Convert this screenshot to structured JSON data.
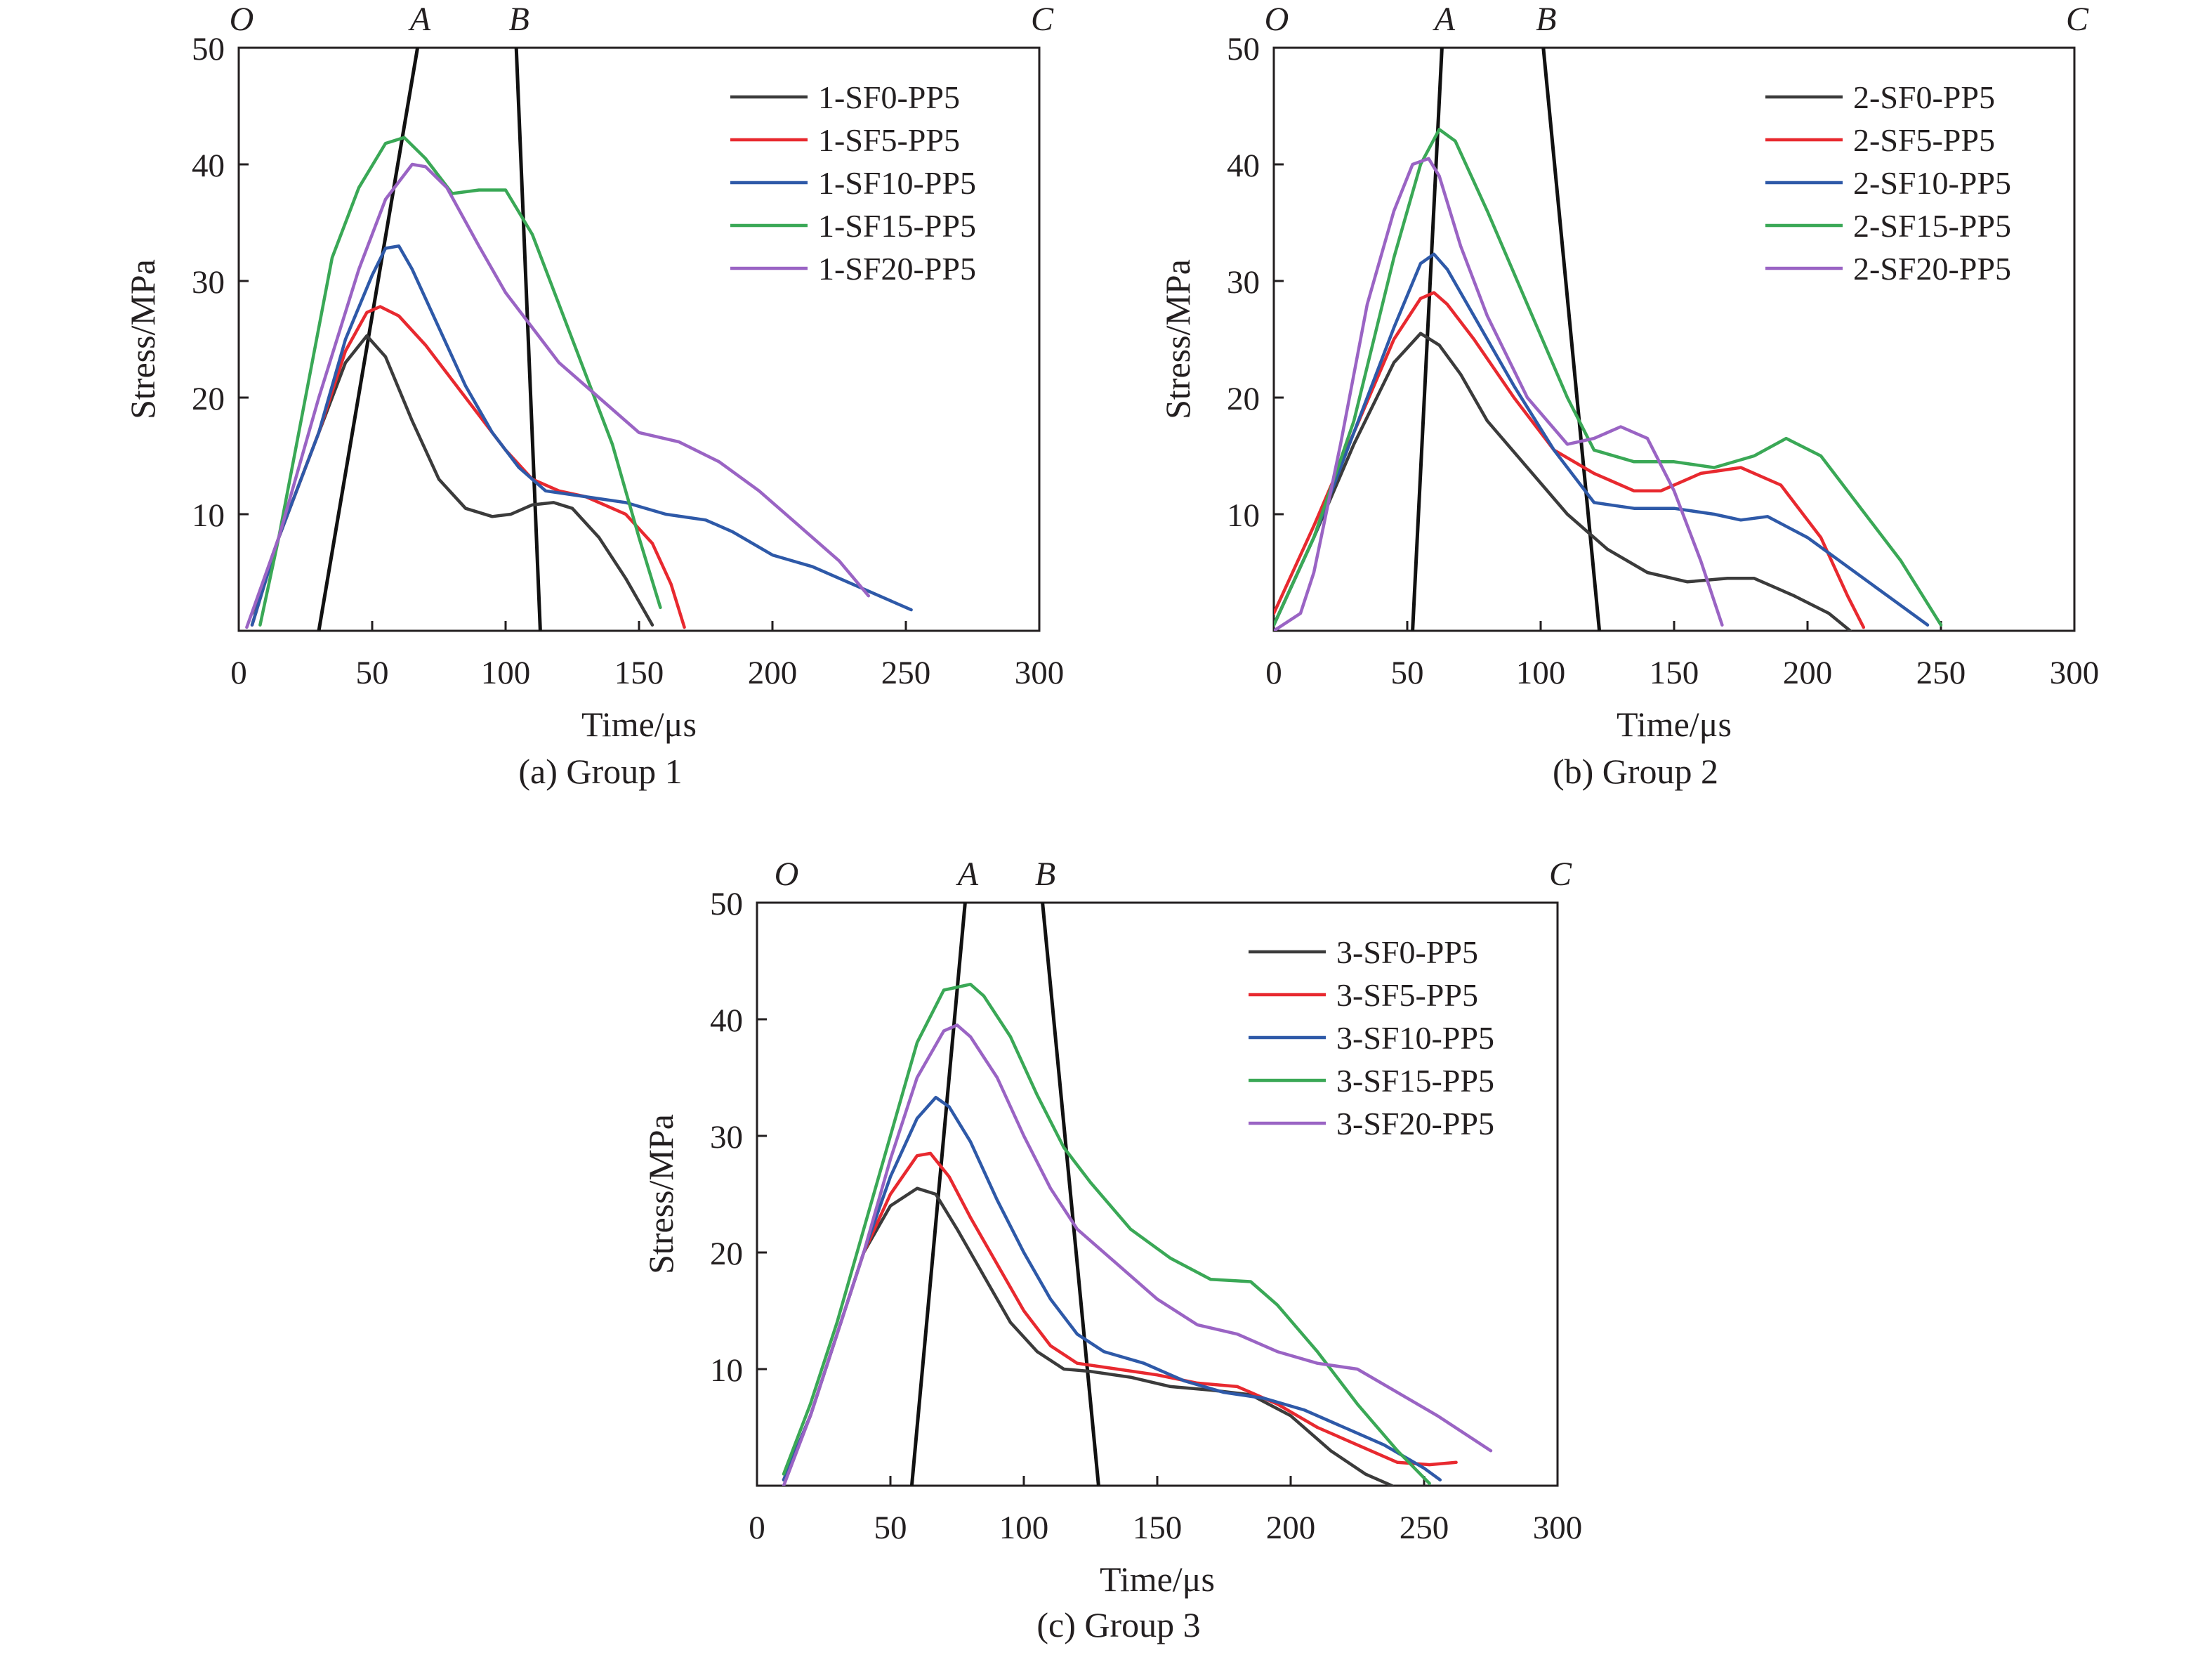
{
  "chart_data": [
    {
      "type": "line",
      "caption": "(a) Group 1",
      "xlabel": "Time/μs",
      "ylabel": "Stress/MPa",
      "xlim": [
        0,
        300
      ],
      "ylim": [
        0,
        50
      ],
      "xticks": [
        "0",
        "50",
        "100",
        "150",
        "200",
        "250",
        "300"
      ],
      "yticks": [
        "10",
        "20",
        "30",
        "40",
        "50"
      ],
      "grid": false,
      "legend_position": "top-right",
      "region_labels": [
        {
          "label": "O",
          "x": 0
        },
        {
          "label": "A",
          "x": 67
        },
        {
          "label": "B",
          "x": 104
        },
        {
          "label": "C",
          "x": 300
        }
      ],
      "boundary_lines": [
        {
          "name": "A",
          "x_bottom": 30,
          "x_top": 67
        },
        {
          "name": "B",
          "x_bottom": 113,
          "x_top": 104
        }
      ],
      "series": [
        {
          "name": "1-SF0-PP5",
          "color": "#3b3b3b",
          "x": [
            5,
            15,
            30,
            40,
            48,
            55,
            65,
            75,
            85,
            95,
            102,
            110,
            118,
            125,
            135,
            145,
            155
          ],
          "y": [
            1.5,
            8,
            17,
            23,
            25.3,
            23.5,
            18,
            13,
            10.5,
            9.8,
            10,
            10.8,
            11,
            10.5,
            8,
            4.5,
            0.5
          ]
        },
        {
          "name": "1-SF5-PP5",
          "color": "#e8292f",
          "x": [
            5,
            15,
            30,
            40,
            48,
            53,
            60,
            70,
            80,
            90,
            100,
            110,
            120,
            130,
            145,
            155,
            162,
            167
          ],
          "y": [
            0.5,
            8,
            17,
            24,
            27.3,
            27.8,
            27,
            24.5,
            21.5,
            18.5,
            15.5,
            13,
            12,
            11.5,
            10,
            7.5,
            4,
            0.3
          ]
        },
        {
          "name": "1-SF10-PP5",
          "color": "#2e59a8",
          "x": [
            5,
            15,
            30,
            40,
            50,
            55,
            60,
            65,
            75,
            85,
            95,
            105,
            115,
            130,
            145,
            160,
            175,
            185,
            200,
            215,
            230,
            245,
            252
          ],
          "y": [
            0.5,
            8,
            17,
            25,
            30.5,
            32.8,
            33,
            31,
            26,
            21,
            17,
            14,
            12,
            11.5,
            11,
            10,
            9.5,
            8.5,
            6.5,
            5.5,
            4,
            2.5,
            1.8
          ]
        },
        {
          "name": "1-SF15-PP5",
          "color": "#3aa856",
          "x": [
            8,
            15,
            25,
            35,
            45,
            55,
            62,
            70,
            80,
            90,
            100,
            110,
            120,
            130,
            140,
            150,
            158
          ],
          "y": [
            0.5,
            8,
            20,
            32,
            38,
            41.8,
            42.3,
            40.5,
            37.5,
            37.8,
            37.8,
            34,
            28,
            22,
            16,
            8,
            2
          ]
        },
        {
          "name": "1-SF20-PP5",
          "color": "#9a64c4",
          "x": [
            3,
            15,
            30,
            45,
            55,
            65,
            70,
            78,
            90,
            100,
            110,
            120,
            135,
            150,
            165,
            180,
            195,
            210,
            225,
            236
          ],
          "y": [
            0.3,
            8,
            20,
            31,
            37,
            40,
            39.8,
            38,
            33,
            29,
            26,
            23,
            20,
            17,
            16.2,
            14.5,
            12,
            9,
            6,
            3
          ]
        }
      ]
    },
    {
      "type": "line",
      "caption": "(b) Group 2",
      "xlabel": "Time/μs",
      "ylabel": "Stress/MPa",
      "xlim": [
        0,
        300
      ],
      "ylim": [
        0,
        50
      ],
      "xticks": [
        "0",
        "50",
        "100",
        "150",
        "200",
        "250",
        "300"
      ],
      "yticks": [
        "10",
        "20",
        "30",
        "40",
        "50"
      ],
      "grid": false,
      "legend_position": "top-right",
      "region_labels": [
        {
          "label": "O",
          "x": 0
        },
        {
          "label": "A",
          "x": 63
        },
        {
          "label": "B",
          "x": 101
        },
        {
          "label": "C",
          "x": 300
        }
      ],
      "boundary_lines": [
        {
          "name": "A",
          "x_bottom": 52,
          "x_top": 63
        },
        {
          "name": "B",
          "x_bottom": 122,
          "x_top": 101
        }
      ],
      "series": [
        {
          "name": "2-SF0-PP5",
          "color": "#3b3b3b",
          "x": [
            0,
            15,
            30,
            45,
            55,
            62,
            70,
            80,
            95,
            110,
            125,
            140,
            155,
            170,
            180,
            195,
            208,
            216
          ],
          "y": [
            0.5,
            8,
            16,
            23,
            25.5,
            24.5,
            22,
            18,
            14,
            10,
            7,
            5,
            4.2,
            4.5,
            4.5,
            3,
            1.5,
            0
          ]
        },
        {
          "name": "2-SF5-PP5",
          "color": "#e8292f",
          "x": [
            0,
            15,
            30,
            45,
            55,
            60,
            65,
            75,
            90,
            105,
            120,
            135,
            145,
            160,
            175,
            190,
            205,
            215,
            221
          ],
          "y": [
            1.5,
            9,
            17,
            25,
            28.5,
            29,
            28,
            25,
            20,
            15.5,
            13.5,
            12,
            12,
            13.5,
            14,
            12.5,
            8,
            3,
            0.3
          ]
        },
        {
          "name": "2-SF10-PP5",
          "color": "#2e59a8",
          "x": [
            0,
            15,
            30,
            45,
            55,
            60,
            65,
            75,
            90,
            105,
            120,
            135,
            150,
            165,
            175,
            185,
            200,
            215,
            230,
            245
          ],
          "y": [
            0.5,
            8,
            17,
            26,
            31.5,
            32.3,
            31,
            27,
            21,
            15.5,
            11,
            10.5,
            10.5,
            10,
            9.5,
            9.8,
            8,
            5.5,
            3,
            0.5
          ]
        },
        {
          "name": "2-SF15-PP5",
          "color": "#3aa856",
          "x": [
            0,
            15,
            30,
            45,
            55,
            62,
            68,
            80,
            95,
            110,
            120,
            135,
            150,
            165,
            180,
            192,
            205,
            220,
            235,
            250
          ],
          "y": [
            0.5,
            8,
            18,
            32,
            40,
            43,
            42,
            36,
            28,
            20,
            15.5,
            14.5,
            14.5,
            14,
            15,
            16.5,
            15,
            10.5,
            6,
            0.5
          ]
        },
        {
          "name": "2-SF20-PP5",
          "color": "#9a64c4",
          "x": [
            0,
            10,
            15,
            25,
            35,
            45,
            52,
            58,
            62,
            70,
            80,
            95,
            110,
            120,
            130,
            140,
            150,
            160,
            168
          ],
          "y": [
            0,
            1.5,
            5,
            16,
            28,
            36,
            40,
            40.5,
            39,
            33,
            27,
            20,
            16,
            16.5,
            17.5,
            16.5,
            12,
            6,
            0.5
          ]
        }
      ]
    },
    {
      "type": "line",
      "caption": "(c) Group 3",
      "xlabel": "Time/μs",
      "ylabel": "Stress/MPa",
      "xlim": [
        0,
        300
      ],
      "ylim": [
        0,
        50
      ],
      "xticks": [
        "0",
        "50",
        "100",
        "150",
        "200",
        "250",
        "300"
      ],
      "yticks": [
        "10",
        "20",
        "30",
        "40",
        "50"
      ],
      "grid": false,
      "legend_position": "top-right",
      "region_labels": [
        {
          "label": "O",
          "x": 10
        },
        {
          "label": "A",
          "x": 78
        },
        {
          "label": "B",
          "x": 107
        },
        {
          "label": "C",
          "x": 300
        }
      ],
      "boundary_lines": [
        {
          "name": "A",
          "x_bottom": 58,
          "x_top": 78
        },
        {
          "name": "B",
          "x_bottom": 128,
          "x_top": 107
        }
      ],
      "series": [
        {
          "name": "3-SF0-PP5",
          "color": "#3b3b3b",
          "x": [
            10,
            20,
            30,
            40,
            50,
            60,
            67,
            75,
            85,
            95,
            105,
            115,
            125,
            140,
            155,
            170,
            185,
            200,
            215,
            228,
            238
          ],
          "y": [
            0.5,
            6,
            13,
            20,
            24,
            25.5,
            25,
            22,
            18,
            14,
            11.5,
            10,
            9.8,
            9.3,
            8.5,
            8.2,
            7.8,
            6,
            3,
            1,
            0
          ]
        },
        {
          "name": "3-SF5-PP5",
          "color": "#e8292f",
          "x": [
            10,
            20,
            30,
            40,
            50,
            60,
            65,
            72,
            80,
            90,
            100,
            110,
            120,
            135,
            150,
            165,
            180,
            195,
            210,
            225,
            240,
            252,
            262
          ],
          "y": [
            0.5,
            6,
            13,
            20,
            25,
            28.3,
            28.5,
            26.5,
            23,
            19,
            15,
            12,
            10.5,
            10,
            9.5,
            8.8,
            8.5,
            7,
            5,
            3.5,
            2,
            1.8,
            2
          ]
        },
        {
          "name": "3-SF10-PP5",
          "color": "#2e59a8",
          "x": [
            10,
            20,
            30,
            40,
            50,
            60,
            67,
            72,
            80,
            90,
            100,
            110,
            120,
            130,
            145,
            160,
            175,
            190,
            205,
            220,
            235,
            250,
            256
          ],
          "y": [
            0.5,
            6,
            13,
            20,
            26.5,
            31.5,
            33.3,
            32.5,
            29.5,
            24.5,
            20,
            16,
            13,
            11.5,
            10.5,
            9,
            8,
            7.5,
            6.5,
            5,
            3.5,
            1.5,
            0.5
          ]
        },
        {
          "name": "3-SF15-PP5",
          "color": "#3aa856",
          "x": [
            10,
            20,
            30,
            40,
            50,
            60,
            70,
            80,
            85,
            95,
            105,
            115,
            125,
            140,
            155,
            170,
            185,
            195,
            210,
            225,
            240,
            252
          ],
          "y": [
            1,
            7,
            14,
            22,
            30,
            38,
            42.5,
            43,
            42,
            38.5,
            33.5,
            29,
            26,
            22,
            19.5,
            17.7,
            17.5,
            15.5,
            11.5,
            7,
            3,
            0.2
          ]
        },
        {
          "name": "3-SF20-PP5",
          "color": "#9a64c4",
          "x": [
            10,
            20,
            30,
            40,
            50,
            60,
            70,
            75,
            80,
            90,
            100,
            110,
            120,
            135,
            150,
            165,
            180,
            195,
            210,
            225,
            240,
            255,
            275
          ],
          "y": [
            0,
            6,
            13,
            20,
            28,
            35,
            39,
            39.5,
            38.5,
            35,
            30,
            25.5,
            22,
            19,
            16,
            13.8,
            13,
            11.5,
            10.5,
            10,
            8,
            6,
            3
          ]
        }
      ]
    }
  ]
}
